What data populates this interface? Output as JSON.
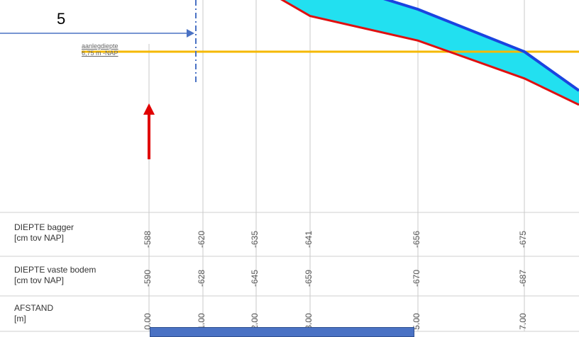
{
  "annotation_number": "5",
  "design_depth": {
    "label_line1": "aanlegdiepte",
    "label_line2": "6,75 m -NAP"
  },
  "rows": {
    "dredge": {
      "title": "DIEPTE bagger",
      "unit": "[cm tov NAP]"
    },
    "bottom": {
      "title": "DIEPTE vaste bodem",
      "unit": "[cm tov NAP]"
    },
    "distance": {
      "title": "AFSTAND",
      "unit": "[m]"
    }
  },
  "chart_data": {
    "type": "line",
    "series": [
      {
        "name": "",
        "values": [
          -588,
          -620,
          -635,
          -641,
          -656,
          -675
        ]
      },
      {
        "name": "",
        "values": [
          -590,
          -628,
          -645,
          -659,
          -670,
          -687
        ]
      }
    ],
    "distance_labels": [
      "0.00",
      "1.00",
      "2.00",
      "3.00",
      "5.00",
      "7.00"
    ],
    "reference_depth_cm": -675,
    "colors": {
      "dredge_line": "#1a44e0",
      "bottom_line": "#e01010",
      "sediment_fill": "#22e0f0",
      "design_line": "#f5b800",
      "arrow_up": "#e00000",
      "pointer": "#4a72c4"
    }
  }
}
